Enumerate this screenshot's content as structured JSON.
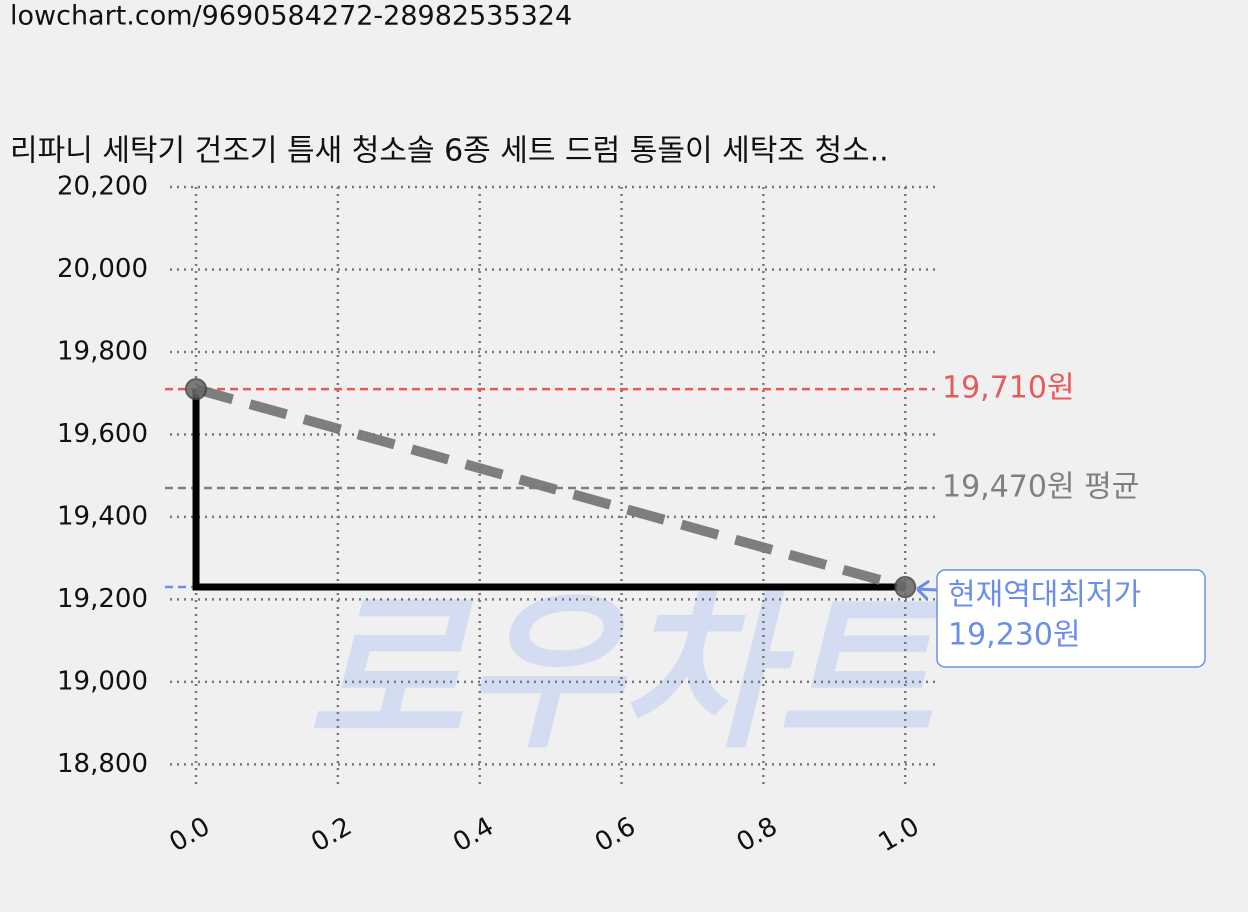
{
  "url": "lowchart.com/9690584272-28982535324",
  "watermark": "로우차트",
  "chart_data": {
    "type": "line",
    "title": "리파니 세탁기 건조기 틈새 청소솔 6종 세트 드럼 통돌이 세탁조 청소..",
    "xlim": [
      -0.0367,
      1.042
    ],
    "xticks": [
      {
        "value": 0,
        "label": "0.0"
      },
      0.2,
      0.4,
      0.6,
      0.8,
      {
        "value": 1,
        "label": "1.0"
      }
    ],
    "ylim": [
      18750,
      20200
    ],
    "yticks": [
      {
        "value": 18800,
        "label": "18,800"
      },
      {
        "value": 19000,
        "label": "19,000"
      },
      {
        "value": 19200,
        "label": "19,200"
      },
      {
        "value": 19400,
        "label": "19,400"
      },
      {
        "value": 19600,
        "label": "19,600"
      },
      {
        "value": 19800,
        "label": "19,800"
      },
      {
        "value": 20000,
        "label": "20,000"
      },
      {
        "value": 20200,
        "label": "20,200"
      }
    ],
    "grid": true,
    "series": [
      {
        "color": "#000000",
        "x": [
          0,
          0,
          1
        ],
        "values": [
          19710,
          19230,
          19230
        ],
        "dashed": false,
        "marker": false
      },
      {
        "color": "#777777",
        "x": [
          0,
          1
        ],
        "values": [
          19710,
          19230
        ],
        "dashed": true,
        "marker": true
      }
    ],
    "hlines": [
      {
        "value": 19710,
        "color": "#e85a5a",
        "label": "19,710원"
      },
      {
        "value": 19470,
        "color": "#808080",
        "label": "19,470원 평균"
      },
      {
        "value": 19230,
        "color": "#6b8fe8"
      }
    ],
    "annotation": {
      "x": 1,
      "y": 19230,
      "color": "#6b8fe8",
      "text": [
        "현재역대최저가",
        "19,230원"
      ]
    }
  }
}
